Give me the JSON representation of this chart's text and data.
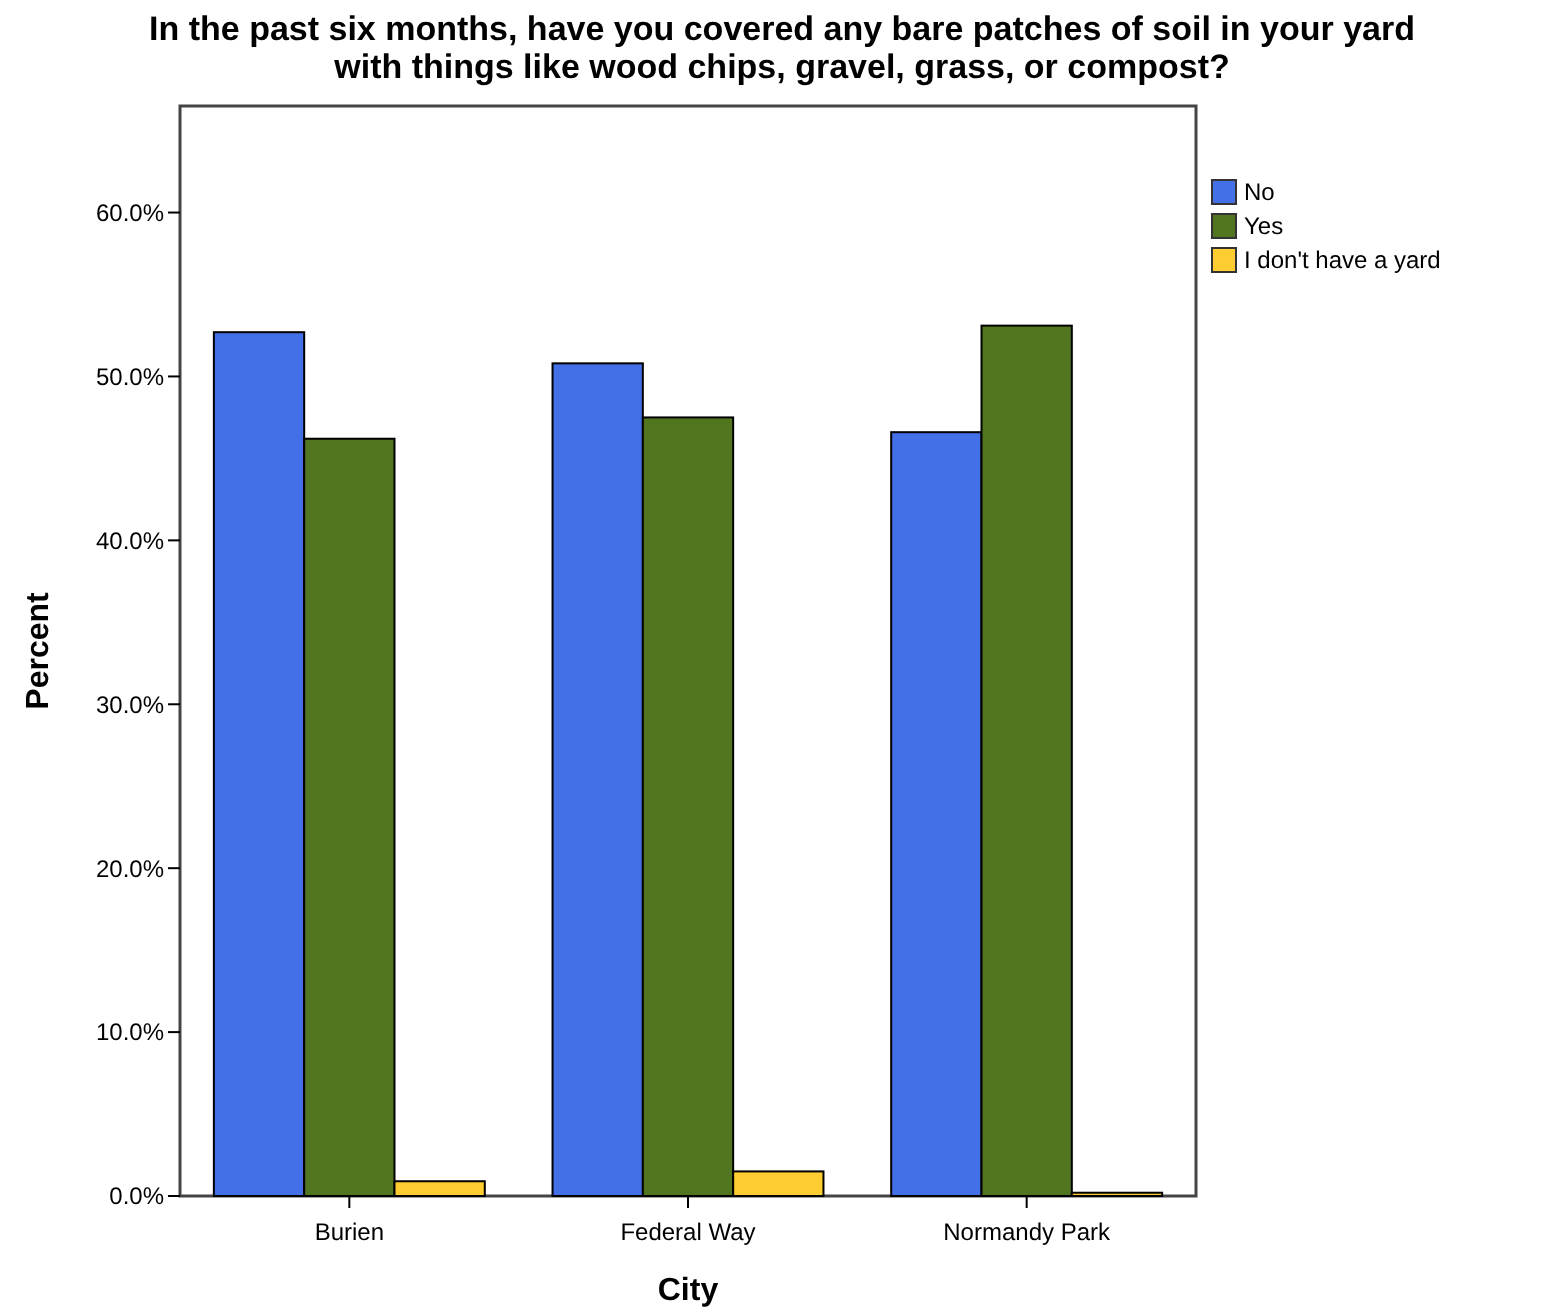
{
  "chart_data": {
    "type": "bar",
    "title": "In the past six months, have you covered any bare patches of soil in your yard\nwith things like wood chips, gravel, grass, or compost?",
    "xlabel": "City",
    "ylabel": "Percent",
    "categories": [
      "Burien",
      "Federal Way",
      "Normandy Park"
    ],
    "series": [
      {
        "name": "No",
        "color": "#4370e6",
        "values": [
          52.7,
          50.8,
          46.6
        ]
      },
      {
        "name": "Yes",
        "color": "#52761f",
        "values": [
          46.2,
          47.5,
          53.1
        ]
      },
      {
        "name": "I don't have a yard",
        "color": "#fdcd31",
        "values": [
          0.9,
          1.5,
          0.2
        ]
      }
    ],
    "ylim": [
      0,
      66.5
    ],
    "yticks": [
      {
        "value": 0,
        "label": "0.0%"
      },
      {
        "value": 10,
        "label": "10.0%"
      },
      {
        "value": 20,
        "label": "20.0%"
      },
      {
        "value": 30,
        "label": "30.0%"
      },
      {
        "value": 40,
        "label": "40.0%"
      },
      {
        "value": 50,
        "label": "50.0%"
      },
      {
        "value": 60,
        "label": "60.0%"
      }
    ],
    "grid": false,
    "legend": "top right"
  }
}
